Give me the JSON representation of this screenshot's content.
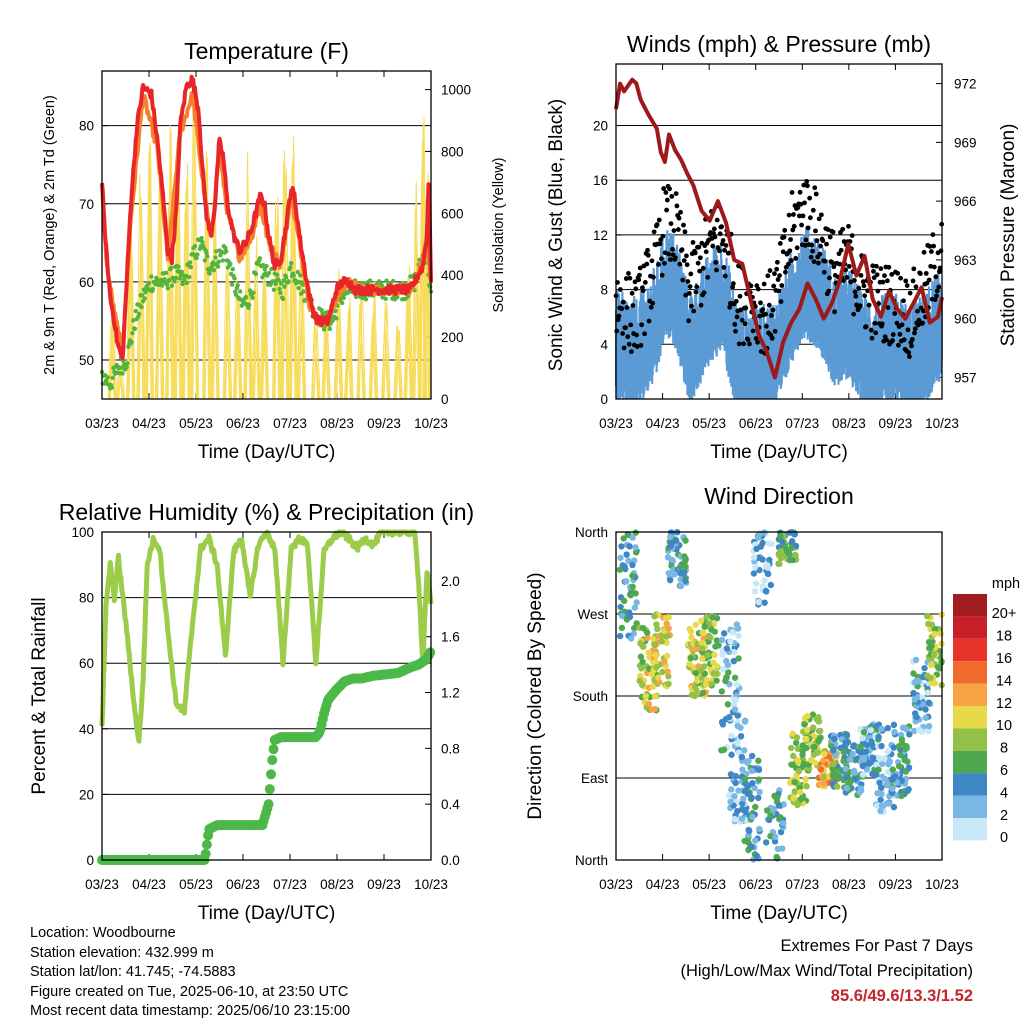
{
  "colors": {
    "temp2m": "#e8262a",
    "temp9m": "#f5822a",
    "dewpoint": "#55b43a",
    "solar": "#f7dc5a",
    "wind": "#5b9bd5",
    "gust": "#000000",
    "pressure": "#9c1a1a",
    "rh": "#9ccc4a",
    "precip": "#4cb848",
    "grid": "#000000"
  },
  "chart_data": [
    {
      "type": "line",
      "title": "Temperature (F)",
      "xlabel": "Time (Day/UTC)",
      "ylabel": "2m & 9m T (Red, Orange) & 2m Td (Green)",
      "ylabel_right": "Solar Insolation (Yellow)",
      "x_ticks": [
        "03/23",
        "04/23",
        "05/23",
        "06/23",
        "07/23",
        "08/23",
        "09/23",
        "10/23"
      ],
      "ylim": [
        45,
        87
      ],
      "yticks": [
        50,
        60,
        70,
        80
      ],
      "ylim_right": [
        0,
        1060
      ],
      "yticks_right": [
        0,
        200,
        400,
        600,
        800,
        1000
      ],
      "series": [
        {
          "name": "2m T",
          "x": [
            0,
            0.05,
            0.12,
            0.2,
            0.3,
            0.38,
            0.5,
            0.58,
            0.7,
            0.85,
            1,
            1.2,
            1.35,
            1.5,
            1.6,
            1.7,
            1.82,
            1.9,
            2.05,
            2.2,
            2.35,
            2.45,
            2.55,
            2.65,
            2.75,
            2.85,
            2.95,
            3.05,
            3.2,
            3.35,
            3.5,
            3.65,
            3.75,
            3.85,
            3.95,
            4.05,
            4.2,
            4.35,
            4.5,
            4.6,
            4.68,
            4.8,
            4.95,
            5.05,
            5.15,
            5.25,
            5.4,
            5.5,
            5.6,
            5.7,
            5.85,
            6,
            6.15,
            6.3,
            6.45,
            6.6,
            6.75,
            6.9,
            7,
            7.1,
            7.2,
            7.3,
            7.4,
            7.5,
            7.6,
            7.7,
            7.8,
            7.9,
            7.95,
            8
          ],
          "y": [
            73,
            68,
            63,
            58,
            55,
            52,
            50,
            58,
            70,
            80,
            85,
            84,
            78,
            70,
            64,
            63,
            70,
            80,
            85,
            86,
            82,
            74,
            68,
            66,
            70,
            78,
            76,
            70,
            66,
            64,
            65,
            67,
            69,
            71,
            70,
            66,
            62,
            63,
            68,
            72,
            71,
            66,
            61,
            58,
            56,
            55,
            55,
            55,
            57,
            59,
            60,
            60,
            59,
            59,
            59,
            59,
            59,
            59,
            59,
            59,
            59,
            59,
            59,
            59,
            60,
            61,
            62,
            66,
            74,
            60
          ]
        },
        {
          "name": "9m T",
          "x": [
            0,
            0.12,
            0.3,
            0.5,
            0.7,
            1,
            1.35,
            1.6,
            1.9,
            2.2,
            2.45,
            2.65,
            2.85,
            3.05,
            3.35,
            3.65,
            3.85,
            4.05,
            4.35,
            4.6,
            4.8,
            5.05,
            5.25,
            5.5,
            5.7,
            6,
            6.3,
            6.6,
            6.9,
            7.2,
            7.5,
            7.7,
            7.9,
            8
          ],
          "y": [
            72,
            62,
            56,
            51,
            68,
            84,
            77,
            63,
            79,
            84,
            73,
            65,
            77,
            69,
            63,
            66,
            70,
            65,
            62,
            71,
            65,
            57,
            55,
            55,
            58,
            60,
            59,
            59,
            59,
            59,
            59,
            61,
            65,
            60
          ]
        },
        {
          "name": "2m Td",
          "x": [
            0,
            0.2,
            0.4,
            0.6,
            0.8,
            1,
            1.2,
            1.5,
            1.8,
            2,
            2.2,
            2.4,
            2.6,
            2.8,
            3,
            3.2,
            3.4,
            3.6,
            3.8,
            4,
            4.2,
            4.4,
            4.6,
            4.8,
            5,
            5.2,
            5.4,
            5.6,
            5.8,
            6,
            6.2,
            6.4,
            6.6,
            6.8,
            7,
            7.2,
            7.4,
            7.6,
            7.8,
            7.9,
            8
          ],
          "y": [
            48,
            47,
            49,
            50,
            55,
            58,
            60,
            60,
            61,
            60,
            63,
            65,
            62,
            63,
            64,
            60,
            57,
            58,
            62,
            61,
            60,
            59,
            62,
            60,
            58,
            56,
            55,
            55,
            58,
            59,
            59,
            59,
            59,
            59,
            59,
            59,
            59,
            60,
            63,
            64,
            58
          ]
        },
        {
          "name": "Solar",
          "peaks": [
            {
              "x": 0.25,
              "y": 300
            },
            {
              "x": 0.45,
              "y": 120
            },
            {
              "x": 0.7,
              "y": 650
            },
            {
              "x": 0.95,
              "y": 800
            },
            {
              "x": 1.15,
              "y": 880
            },
            {
              "x": 1.4,
              "y": 900
            },
            {
              "x": 1.65,
              "y": 920
            },
            {
              "x": 1.85,
              "y": 950
            },
            {
              "x": 2.05,
              "y": 980
            },
            {
              "x": 2.25,
              "y": 990
            },
            {
              "x": 2.55,
              "y": 850
            },
            {
              "x": 2.75,
              "y": 700
            },
            {
              "x": 3.05,
              "y": 520
            },
            {
              "x": 3.3,
              "y": 450
            },
            {
              "x": 3.55,
              "y": 820
            },
            {
              "x": 3.75,
              "y": 620
            },
            {
              "x": 3.95,
              "y": 560
            },
            {
              "x": 4.25,
              "y": 700
            },
            {
              "x": 4.45,
              "y": 930
            },
            {
              "x": 4.65,
              "y": 1000
            },
            {
              "x": 4.85,
              "y": 560
            },
            {
              "x": 5.2,
              "y": 280
            },
            {
              "x": 5.45,
              "y": 300
            },
            {
              "x": 5.75,
              "y": 420
            },
            {
              "x": 6.0,
              "y": 350
            },
            {
              "x": 6.3,
              "y": 380
            },
            {
              "x": 6.6,
              "y": 420
            },
            {
              "x": 6.9,
              "y": 340
            },
            {
              "x": 7.2,
              "y": 320
            },
            {
              "x": 7.45,
              "y": 430
            },
            {
              "x": 7.65,
              "y": 750
            },
            {
              "x": 7.8,
              "y": 1060
            },
            {
              "x": 7.9,
              "y": 760
            }
          ]
        }
      ]
    },
    {
      "type": "scatter",
      "title": "Winds (mph) & Pressure (mb)",
      "xlabel": "Time (Day/UTC)",
      "ylabel": "Sonic Wind & Gust (Blue, Black)",
      "ylabel_right": "Station Pressure (Maroon)",
      "x_ticks": [
        "03/23",
        "04/23",
        "05/23",
        "06/23",
        "07/23",
        "08/23",
        "09/23",
        "10/23"
      ],
      "ylim": [
        0,
        24.5
      ],
      "yticks": [
        0,
        4,
        8,
        12,
        16,
        20
      ],
      "ylim_right": [
        955.9,
        973.0
      ],
      "yticks_right": [
        957,
        960,
        963,
        966,
        969,
        972
      ],
      "wind_level": {
        "x": [
          0,
          0.5,
          1,
          1.2,
          1.5,
          1.8,
          2,
          2.3,
          2.6,
          3,
          3.4,
          3.7,
          4,
          4.3,
          4.6,
          5,
          5.4,
          5.7,
          6,
          6.4,
          6.8,
          7.2,
          7.6,
          8
        ],
        "y": [
          4,
          3.5,
          6,
          9,
          8,
          4,
          5,
          7,
          8,
          3,
          3,
          3,
          4,
          7,
          9,
          8,
          5,
          6,
          4,
          3.5,
          4,
          3,
          4,
          6
        ]
      },
      "gust_level": {
        "x": [
          0,
          0.5,
          1,
          1.2,
          1.5,
          1.8,
          2,
          2.3,
          2.6,
          3,
          3.4,
          3.7,
          4,
          4.3,
          4.6,
          5,
          5.4,
          5.7,
          6,
          6.4,
          6.8,
          7.2,
          7.6,
          8
        ],
        "y": [
          7,
          6,
          10,
          13,
          12,
          8,
          9,
          11,
          12,
          7,
          7,
          6,
          8,
          12,
          14,
          12,
          9,
          10,
          8,
          7,
          7,
          6,
          8,
          11
        ]
      },
      "pressure": {
        "x": [
          0,
          0.1,
          0.2,
          0.3,
          0.4,
          0.5,
          0.6,
          0.8,
          1,
          1.1,
          1.2,
          1.3,
          1.45,
          1.6,
          1.75,
          1.9,
          2.1,
          2.3,
          2.5,
          2.7,
          2.9,
          3.1,
          3.3,
          3.5,
          3.7,
          3.9,
          4.1,
          4.3,
          4.5,
          4.7,
          4.9,
          5.1,
          5.3,
          5.5,
          5.7,
          5.9,
          6.1,
          6.3,
          6.5,
          6.7,
          6.9,
          7.1,
          7.3,
          7.5,
          7.7,
          7.9,
          8
        ],
        "y": [
          970.7,
          972.0,
          971.6,
          971.9,
          972.2,
          972.0,
          971.2,
          970.4,
          969.7,
          968.5,
          968.0,
          969.4,
          968.6,
          968.1,
          967.4,
          966.8,
          965.5,
          965.0,
          966.0,
          964.9,
          963.0,
          962.8,
          961.0,
          959.2,
          958.3,
          957.0,
          958.8,
          959.8,
          960.5,
          961.8,
          961.0,
          960.0,
          960.8,
          962.0,
          963.8,
          962.2,
          963.2,
          961.0,
          960.1,
          961.4,
          960.5,
          960.0,
          960.8,
          961.6,
          959.8,
          960.1,
          961.1
        ]
      }
    },
    {
      "type": "line",
      "title": "Relative Humidity (%) & Precipitation (in)",
      "xlabel": "Time (Day/UTC)",
      "ylabel": "Percent & Total Rainfall",
      "x_ticks": [
        "03/23",
        "04/23",
        "05/23",
        "06/23",
        "07/23",
        "08/23",
        "09/23",
        "10/23"
      ],
      "ylim": [
        0,
        100
      ],
      "yticks": [
        0,
        20,
        40,
        60,
        80,
        100
      ],
      "ylim_right": [
        0,
        2.35
      ],
      "yticks_right": [
        "0.0",
        "0.4",
        "0.8",
        "1.2",
        "1.6",
        "2.0"
      ],
      "series": [
        {
          "name": "RH",
          "x": [
            0,
            0.1,
            0.2,
            0.3,
            0.4,
            0.6,
            0.8,
            0.9,
            1.0,
            1.1,
            1.25,
            1.4,
            1.6,
            1.8,
            2.0,
            2.2,
            2.4,
            2.6,
            2.8,
            3.0,
            3.2,
            3.4,
            3.6,
            3.8,
            4.0,
            4.2,
            4.4,
            4.6,
            4.8,
            5.0,
            5.2,
            5.4,
            5.6,
            5.8,
            6.0,
            6.2,
            6.4,
            6.6,
            6.8,
            7.0,
            7.2,
            7.4,
            7.6,
            7.7,
            7.8,
            7.9,
            8
          ],
          "y": [
            40,
            78,
            90,
            80,
            92,
            70,
            45,
            36,
            55,
            90,
            98,
            95,
            70,
            48,
            45,
            72,
            95,
            98,
            90,
            62,
            94,
            98,
            80,
            96,
            100,
            95,
            60,
            95,
            98,
            96,
            60,
            94,
            98,
            100,
            98,
            95,
            98,
            96,
            100,
            100,
            100,
            100,
            100,
            85,
            60,
            88,
            78
          ]
        },
        {
          "name": "Precip",
          "x": [
            0,
            0.3,
            0.6,
            0.9,
            1.2,
            1.5,
            1.8,
            2.1,
            2.3,
            2.5,
            2.6,
            2.8,
            3.0,
            3.3,
            3.6,
            3.9,
            4.05,
            4.1,
            4.15,
            4.2,
            4.35,
            4.6,
            4.9,
            5.2,
            5.3,
            5.4,
            5.5,
            5.7,
            5.9,
            6.1,
            6.3,
            6.6,
            6.9,
            7.2,
            7.5,
            7.7,
            7.9,
            8
          ],
          "y": [
            0,
            0,
            0,
            0,
            0,
            0,
            0,
            0,
            0,
            0,
            0.22,
            0.25,
            0.25,
            0.25,
            0.25,
            0.25,
            0.4,
            0.58,
            0.75,
            0.86,
            0.88,
            0.88,
            0.88,
            0.88,
            0.92,
            1.05,
            1.15,
            1.22,
            1.28,
            1.3,
            1.3,
            1.32,
            1.33,
            1.34,
            1.38,
            1.4,
            1.44,
            1.5
          ]
        }
      ]
    },
    {
      "type": "scatter",
      "title": "Wind Direction",
      "xlabel": "Time (Day/UTC)",
      "ylabel": "Direction (Colored By Speed)",
      "x_ticks": [
        "03/23",
        "04/23",
        "05/23",
        "06/23",
        "07/23",
        "08/23",
        "09/23",
        "10/23"
      ],
      "yticks": [
        "North",
        "East",
        "South",
        "West",
        "North"
      ],
      "ylim": [
        0,
        360
      ],
      "legend_title": "mph",
      "legend_labels": [
        "20+",
        "18",
        "16",
        "14",
        "12",
        "10",
        "8",
        "6",
        "4",
        "2",
        "0"
      ],
      "legend_colors": [
        "#a11b1f",
        "#c8202a",
        "#e8332a",
        "#f26a2f",
        "#f7a445",
        "#e8d94a",
        "#93c047",
        "#4ea84e",
        "#3f86c4",
        "#7ab8e3",
        "#c8e8f7"
      ],
      "clusters": [
        {
          "x": 0.3,
          "d": 300,
          "sp": 60,
          "s": 4
        },
        {
          "x": 0.8,
          "d": 210,
          "sp": 50,
          "s": 9
        },
        {
          "x": 1.1,
          "d": 230,
          "sp": 40,
          "s": 10
        },
        {
          "x": 1.5,
          "d": 330,
          "sp": 30,
          "s": 4
        },
        {
          "x": 2.0,
          "d": 220,
          "sp": 40,
          "s": 9
        },
        {
          "x": 2.3,
          "d": 230,
          "sp": 40,
          "s": 8
        },
        {
          "x": 2.8,
          "d": 190,
          "sp": 70,
          "s": 3
        },
        {
          "x": 3.0,
          "d": 100,
          "sp": 60,
          "s": 2
        },
        {
          "x": 3.3,
          "d": 60,
          "sp": 60,
          "s": 4
        },
        {
          "x": 3.6,
          "d": 330,
          "sp": 50,
          "s": 2
        },
        {
          "x": 3.9,
          "d": 30,
          "sp": 50,
          "s": 4
        },
        {
          "x": 4.2,
          "d": 345,
          "sp": 20,
          "s": 6
        },
        {
          "x": 4.5,
          "d": 100,
          "sp": 40,
          "s": 8
        },
        {
          "x": 4.8,
          "d": 130,
          "sp": 30,
          "s": 8
        },
        {
          "x": 5.2,
          "d": 100,
          "sp": 20,
          "s": 11
        },
        {
          "x": 5.5,
          "d": 110,
          "sp": 30,
          "s": 5
        },
        {
          "x": 5.8,
          "d": 100,
          "sp": 30,
          "s": 4
        },
        {
          "x": 6.2,
          "d": 120,
          "sp": 30,
          "s": 3
        },
        {
          "x": 6.6,
          "d": 100,
          "sp": 50,
          "s": 3
        },
        {
          "x": 7.0,
          "d": 110,
          "sp": 40,
          "s": 4
        },
        {
          "x": 7.5,
          "d": 180,
          "sp": 40,
          "s": 3
        },
        {
          "x": 7.85,
          "d": 230,
          "sp": 40,
          "s": 8
        }
      ]
    }
  ],
  "station": {
    "location": "Location: Woodbourne",
    "elevation": "Station elevation: 432.999 m",
    "latlon": "Station lat/lon: 41.745; -74.5883",
    "created": "Figure created on Tue, 2025-06-10, at 23:50 UTC",
    "timestamp": "Most recent data timestamp: 2025/06/10 23:15:00"
  },
  "extremes": {
    "line1": "Extremes For Past 7 Days",
    "line2": "(High/Low/Max Wind/Total Precipitation)",
    "values": "85.6/49.6/13.3/1.52"
  }
}
